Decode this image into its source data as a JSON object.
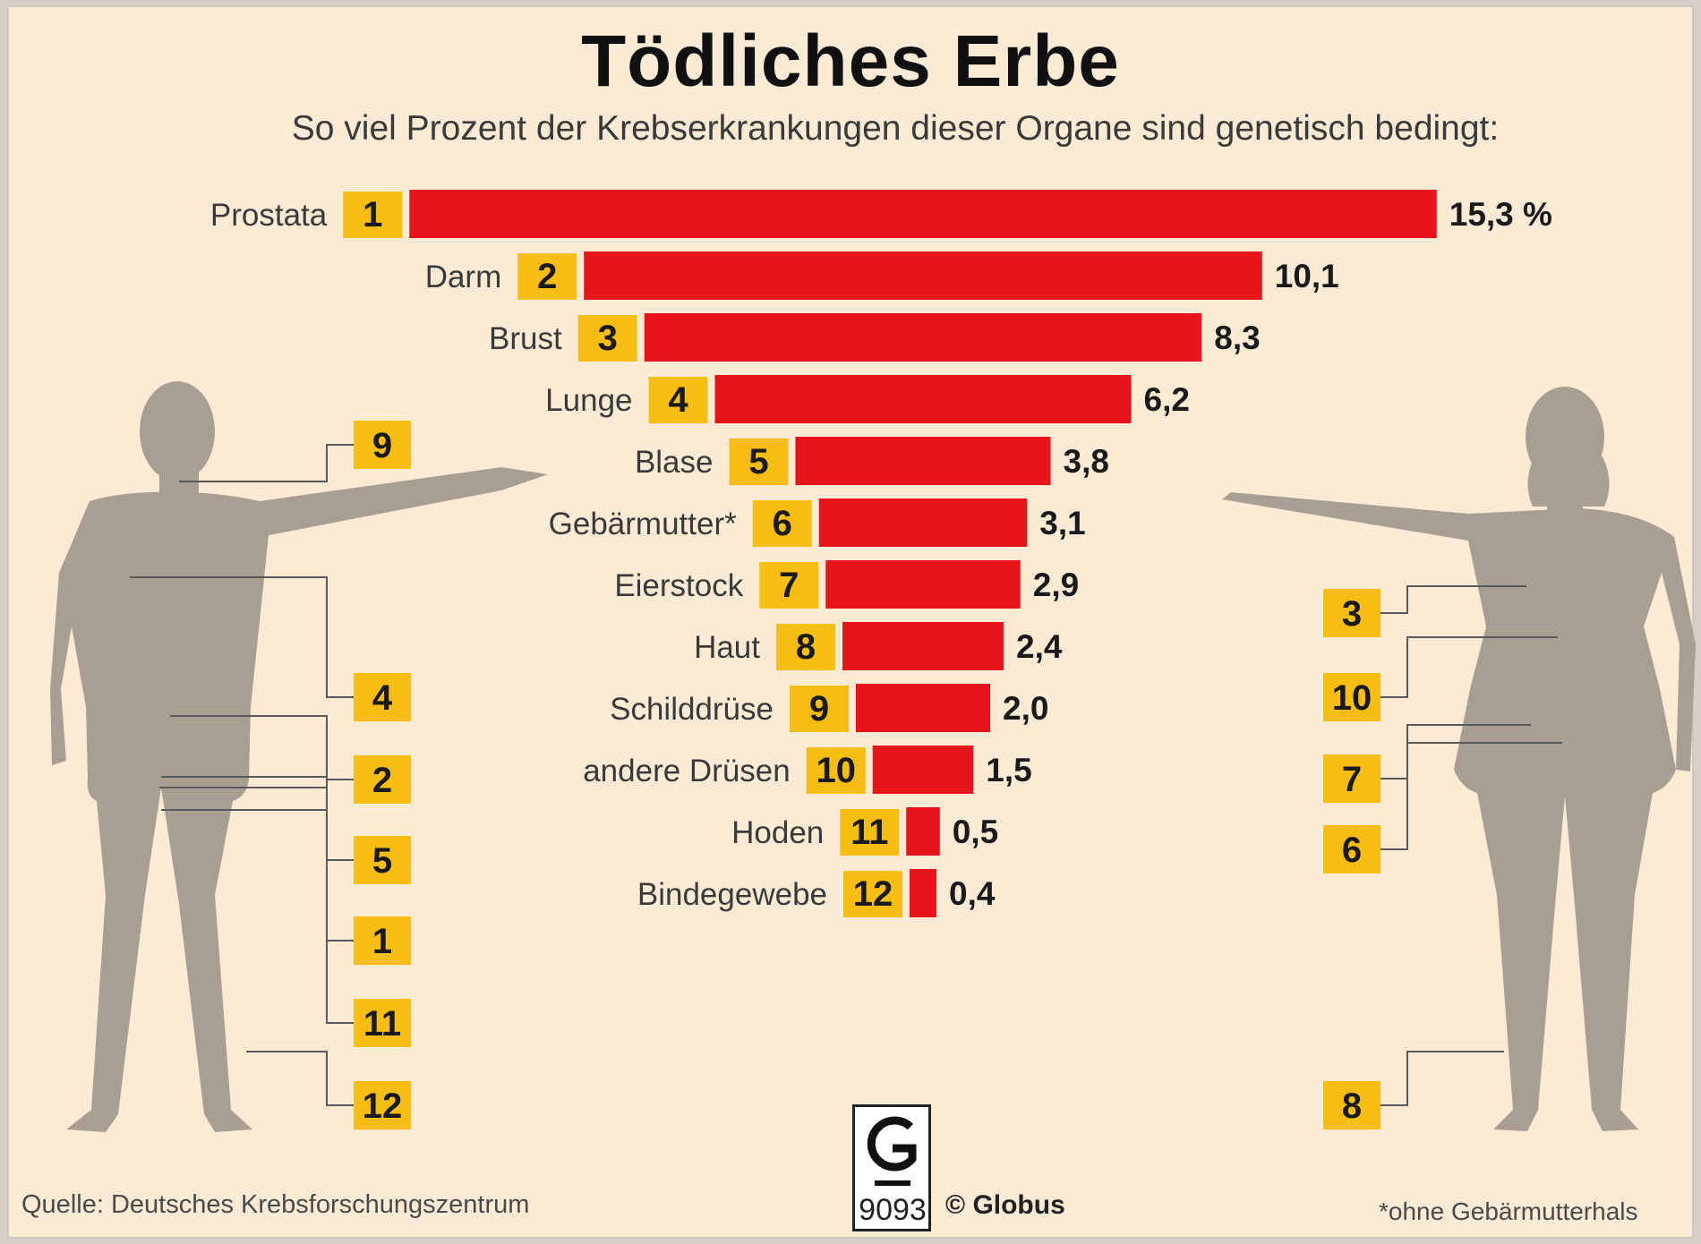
{
  "title": "Tödliches Erbe",
  "subtitle": "So viel Prozent der Krebserkrankungen dieser Organe sind genetisch bedingt:",
  "footer": {
    "source": "Quelle: Deutsches Krebsforschungszentrum",
    "publisher": "© Globus",
    "graphic_number": "9093",
    "footnote": "*ohne Gebärmutterhals"
  },
  "colors": {
    "background": "#fbead4",
    "bar": "#e8141c",
    "badge": "#f6bd12",
    "silhouette": "#a89e92"
  },
  "chart_data": {
    "type": "bar",
    "orientation": "horizontal",
    "value_unit": "%",
    "categories": [
      "Prostata",
      "Darm",
      "Brust",
      "Lunge",
      "Blase",
      "Gebärmutter*",
      "Eierstock",
      "Haut",
      "Schilddrüse",
      "andere Drüsen",
      "Hoden",
      "Bindegewebe"
    ],
    "ranks": [
      "1",
      "2",
      "3",
      "4",
      "5",
      "6",
      "7",
      "8",
      "9",
      "10",
      "11",
      "12"
    ],
    "values": [
      15.3,
      10.1,
      8.3,
      6.2,
      3.8,
      3.1,
      2.9,
      2.4,
      2.0,
      1.5,
      0.5,
      0.4
    ],
    "value_labels": [
      "15,3 %",
      "10,1",
      "8,3",
      "6,2",
      "3,8",
      "3,1",
      "2,9",
      "2,4",
      "2,0",
      "1,5",
      "0,5",
      "0,4"
    ],
    "male_figure_markers": [
      "9",
      "4",
      "2",
      "5",
      "1",
      "11",
      "12"
    ],
    "female_figure_markers": [
      "3",
      "10",
      "7",
      "6",
      "8"
    ]
  }
}
